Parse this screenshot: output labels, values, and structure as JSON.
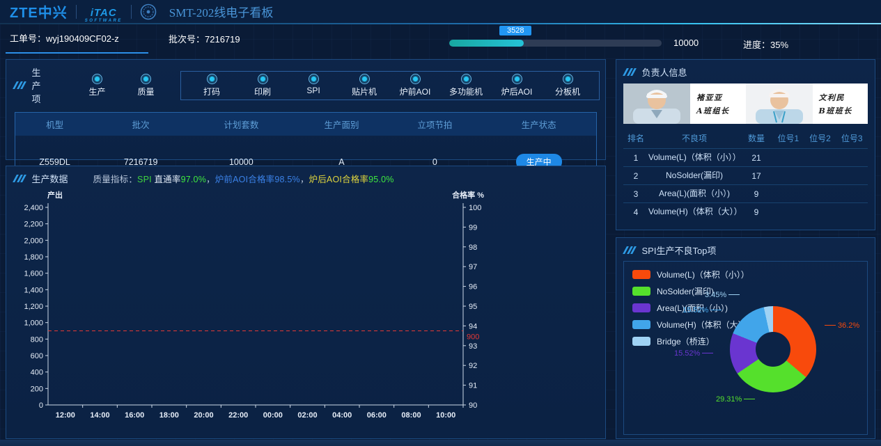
{
  "header": {
    "zte_logo": "ZTE中兴",
    "itac_logo": "iTAC",
    "itac_sub": "SOFTWARE",
    "title": "SMT-202线电子看板"
  },
  "icons": {
    "panel_marker_icon": "///",
    "stage_radio_icon": "◉",
    "emblem_icon": "round-badge"
  },
  "colors": {
    "accent_blue": "#2196f3",
    "progress_fill": "#1fb8b8",
    "target_red": "#e53935"
  },
  "info": {
    "work_order_label": "工单号：",
    "work_order_value": "wyj190409CF02-z",
    "batch_label": "批次号：",
    "batch_value": "7216719"
  },
  "progress": {
    "current": "3528",
    "total": "10000",
    "percent_label": "进度：35%",
    "percent": 35
  },
  "production_items": {
    "panel_title": "生产项",
    "standalone": [
      {
        "label": "生产"
      },
      {
        "label": "质量"
      }
    ],
    "grouped": [
      {
        "label": "打码"
      },
      {
        "label": "印刷"
      },
      {
        "label": "SPI"
      },
      {
        "label": "贴片机"
      },
      {
        "label": "炉前AOI"
      },
      {
        "label": "多功能机"
      },
      {
        "label": "炉后AOI"
      },
      {
        "label": "分板机"
      }
    ]
  },
  "order_table": {
    "headers": [
      "机型",
      "批次",
      "计划套数",
      "生产面别",
      "立项节拍",
      "生产状态"
    ],
    "row": {
      "model": "Z559DL",
      "batch": "7216719",
      "planned": "10000",
      "side": "A",
      "takt": "0",
      "status": "生产中"
    }
  },
  "production_data": {
    "panel_title": "生产数据",
    "indicator_segments": [
      {
        "text": "质量指标：",
        "color": "#b7c5d9"
      },
      {
        "text": "SPI",
        "color": "#3fd43f"
      },
      {
        "text": " 直通率",
        "color": "#e0eaf5"
      },
      {
        "text": "97.0%",
        "color": "#3fe83f"
      },
      {
        "text": "，",
        "color": "#b7c5d9"
      },
      {
        "text": "炉前AOI合格率",
        "color": "#3b82e8"
      },
      {
        "text": "98.5%",
        "color": "#3b82e8"
      },
      {
        "text": "，",
        "color": "#b7c5d9"
      },
      {
        "text": "炉后AOI合格率",
        "color": "#ded43e"
      },
      {
        "text": "95.0%",
        "color": "#3fe83f"
      }
    ]
  },
  "staff": {
    "panel_title": "负责人信息",
    "members": [
      {
        "name": "褚亚亚",
        "role": "A班组长"
      },
      {
        "name": "文利民",
        "role": "B班班长"
      }
    ]
  },
  "defect_table": {
    "headers": [
      "排名",
      "不良项",
      "数量",
      "位号1",
      "位号2",
      "位号3"
    ],
    "rows": [
      {
        "rank": "1",
        "item": "Volume(L)（体积（小））",
        "qty": "21",
        "pos1": "",
        "pos2": "",
        "pos3": ""
      },
      {
        "rank": "2",
        "item": "NoSolder(漏印)",
        "qty": "17",
        "pos1": "",
        "pos2": "",
        "pos3": ""
      },
      {
        "rank": "3",
        "item": "Area(L)(面积（小）)",
        "qty": "9",
        "pos1": "",
        "pos2": "",
        "pos3": ""
      },
      {
        "rank": "4",
        "item": "Volume(H)（体积（大））",
        "qty": "9",
        "pos1": "",
        "pos2": "",
        "pos3": ""
      }
    ]
  },
  "spi_panel": {
    "panel_title": "SPI生产不良Top项"
  },
  "chart_data": [
    {
      "type": "line",
      "title": "生产数据 产出/合格率趋势",
      "left_axis": {
        "label": "产出",
        "min": 0,
        "max": 2400,
        "step": 200
      },
      "right_axis": {
        "label": "合格率 %",
        "min": 90,
        "max": 100,
        "step": 1
      },
      "x_ticks": [
        "12:00",
        "14:00",
        "16:00",
        "18:00",
        "20:00",
        "22:00",
        "00:00",
        "02:00",
        "04:00",
        "06:00",
        "08:00",
        "10:00"
      ],
      "series": [],
      "target_line": {
        "value": 900,
        "label": "900",
        "color": "#e53935"
      },
      "grid": false,
      "axis_color": "#cdd9e8"
    },
    {
      "type": "pie",
      "title": "SPI生产不良Top项",
      "legend_position": "top-left",
      "slices": [
        {
          "label": "Volume(L)（体积（小））",
          "value": 36.2,
          "display": "36.2%",
          "color": "#f84a0c"
        },
        {
          "label": "NoSolder(漏印)",
          "value": 29.31,
          "display": "29.31%",
          "color": "#55e02c"
        },
        {
          "label": "Area(L)(面积（小）)",
          "value": 15.52,
          "display": "15.52%",
          "color": "#6a35d0"
        },
        {
          "label": "Volume(H)（体积（大））",
          "value": 15.52,
          "display": "15.52%",
          "color": "#41a5ea"
        },
        {
          "label": "Bridge（桥连）",
          "value": 3.45,
          "display": "3.45%",
          "color": "#9fd2f4"
        }
      ]
    }
  ]
}
